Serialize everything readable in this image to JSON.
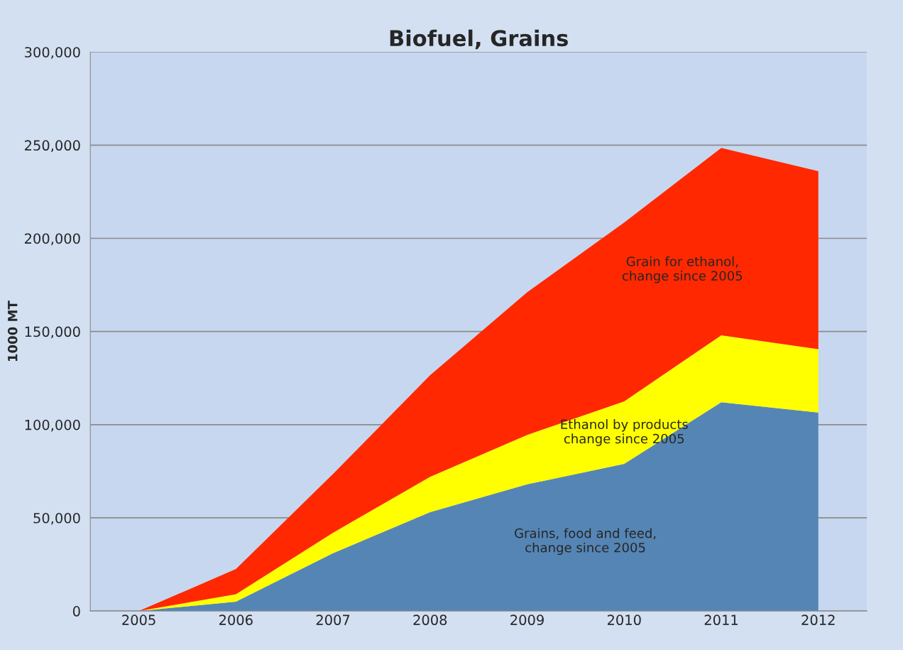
{
  "chart_data": {
    "type": "area",
    "title": "Biofuel, Grains",
    "ylabel": "1000 MT",
    "stacked": true,
    "categories": [
      "2005",
      "2006",
      "2007",
      "2008",
      "2009",
      "2010",
      "2011",
      "2012"
    ],
    "series": [
      {
        "name": "Grains, food and feed, change since 2005",
        "color": "#5585b5",
        "values": [
          0,
          5000,
          31000,
          53000,
          68000,
          79000,
          112000,
          106500
        ]
      },
      {
        "name": "Ethanol by products change since 2005",
        "color": "#ffff00",
        "values": [
          0,
          4000,
          11000,
          19000,
          26500,
          33500,
          36000,
          34000
        ]
      },
      {
        "name": "Grain for ethanol, change since 2005",
        "color": "#ff2800",
        "values": [
          0,
          13500,
          31500,
          54500,
          76500,
          96000,
          100500,
          95500
        ]
      }
    ],
    "ylim": [
      0,
      300000
    ],
    "yticks": [
      0,
      {
        "value": 50000,
        "label": "50,000"
      },
      {
        "value": 100000,
        "label": "100,000"
      },
      {
        "value": 150000,
        "label": "150,000"
      },
      {
        "value": 200000,
        "label": "200,000"
      },
      {
        "value": 250000,
        "label": "250,000"
      },
      {
        "value": 300000,
        "label": "300,000"
      }
    ],
    "grid": "y",
    "legend": false
  }
}
